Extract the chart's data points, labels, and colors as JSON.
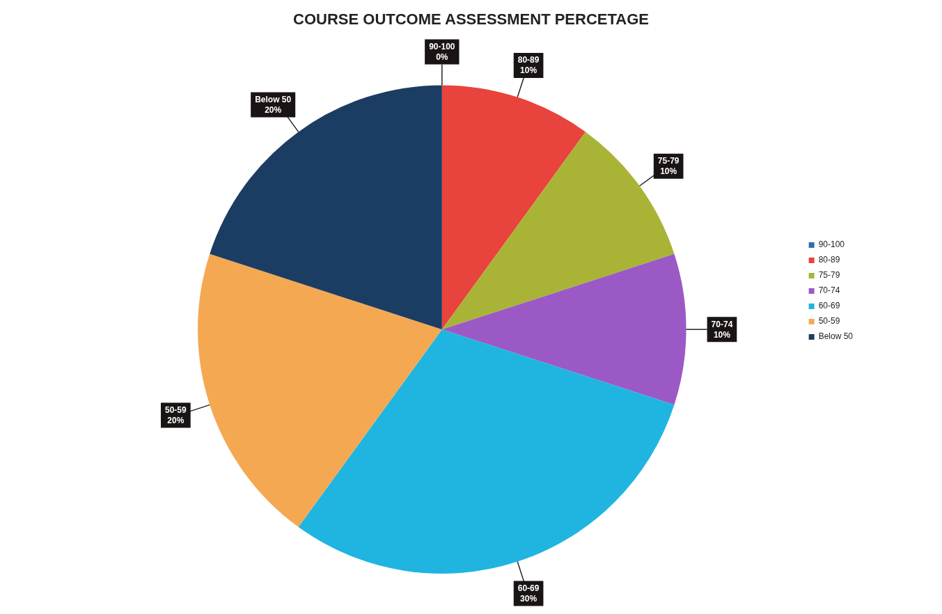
{
  "chart_data": {
    "type": "pie",
    "title": "COURSE OUTCOME ASSESSMENT PERCETAGE",
    "categories": [
      "90-100",
      "80-89",
      "75-79",
      "70-74",
      "60-69",
      "50-59",
      "Below 50"
    ],
    "values": [
      0,
      10,
      10,
      10,
      30,
      20,
      20
    ],
    "colors": [
      "#2f6db5",
      "#e8433c",
      "#a9b436",
      "#9b59c6",
      "#1fb5e0",
      "#f5a852",
      "#1c3d63"
    ],
    "value_labels": [
      "0%",
      "10%",
      "10%",
      "10%",
      "30%",
      "20%",
      "20%"
    ],
    "legend": "right"
  }
}
